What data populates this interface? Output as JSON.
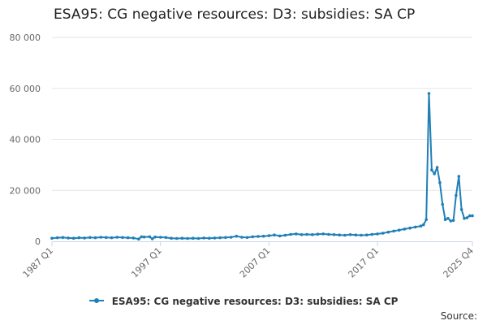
{
  "chart_data": {
    "type": "line",
    "title": "ESA95: CG negative resources: D3: subsidies: SA CP",
    "xlabel": "",
    "ylabel": "",
    "ylim": [
      0,
      80000
    ],
    "yticks": [
      {
        "value": 0,
        "label": "0"
      },
      {
        "value": 20000,
        "label": "20 000"
      },
      {
        "value": 40000,
        "label": "40 000"
      },
      {
        "value": 60000,
        "label": "60 000"
      },
      {
        "value": 80000,
        "label": "80 000"
      }
    ],
    "xlim": [
      1987.0,
      2025.75
    ],
    "xticks": [
      {
        "value": 1987.0,
        "label": "1987 Q1"
      },
      {
        "value": 1997.0,
        "label": "1997 Q1"
      },
      {
        "value": 2007.0,
        "label": "2007 Q1"
      },
      {
        "value": 2017.0,
        "label": "2017 Q1"
      },
      {
        "value": 2025.75,
        "label": "2025 Q4"
      }
    ],
    "grid": true,
    "legend_position": "bottom",
    "series": [
      {
        "name": "ESA95: CG negative resources: D3: subsidies: SA CP",
        "color": "#1f7fb7",
        "points": [
          [
            1987.0,
            1200
          ],
          [
            1987.5,
            1400
          ],
          [
            1988.0,
            1500
          ],
          [
            1988.5,
            1300
          ],
          [
            1989.0,
            1200
          ],
          [
            1989.5,
            1400
          ],
          [
            1990.0,
            1300
          ],
          [
            1990.5,
            1500
          ],
          [
            1991.0,
            1400
          ],
          [
            1991.5,
            1600
          ],
          [
            1992.0,
            1500
          ],
          [
            1992.5,
            1400
          ],
          [
            1993.0,
            1600
          ],
          [
            1993.5,
            1500
          ],
          [
            1994.0,
            1400
          ],
          [
            1994.5,
            1300
          ],
          [
            1995.0,
            900
          ],
          [
            1995.25,
            1800
          ],
          [
            1995.5,
            1700
          ],
          [
            1996.0,
            1800
          ],
          [
            1996.25,
            1000
          ],
          [
            1996.5,
            1700
          ],
          [
            1997.0,
            1600
          ],
          [
            1997.5,
            1500
          ],
          [
            1998.0,
            1200
          ],
          [
            1998.5,
            1100
          ],
          [
            1999.0,
            1200
          ],
          [
            1999.5,
            1100
          ],
          [
            2000.0,
            1200
          ],
          [
            2000.5,
            1100
          ],
          [
            2001.0,
            1300
          ],
          [
            2001.5,
            1200
          ],
          [
            2002.0,
            1300
          ],
          [
            2002.5,
            1400
          ],
          [
            2003.0,
            1500
          ],
          [
            2003.5,
            1600
          ],
          [
            2004.0,
            2000
          ],
          [
            2004.5,
            1600
          ],
          [
            2005.0,
            1500
          ],
          [
            2005.5,
            1800
          ],
          [
            2006.0,
            1900
          ],
          [
            2006.5,
            2000
          ],
          [
            2007.0,
            2200
          ],
          [
            2007.5,
            2500
          ],
          [
            2008.0,
            2100
          ],
          [
            2008.5,
            2400
          ],
          [
            2009.0,
            2700
          ],
          [
            2009.5,
            2900
          ],
          [
            2010.0,
            2600
          ],
          [
            2010.5,
            2700
          ],
          [
            2011.0,
            2600
          ],
          [
            2011.5,
            2800
          ],
          [
            2012.0,
            2900
          ],
          [
            2012.5,
            2700
          ],
          [
            2013.0,
            2600
          ],
          [
            2013.5,
            2500
          ],
          [
            2014.0,
            2400
          ],
          [
            2014.5,
            2600
          ],
          [
            2015.0,
            2500
          ],
          [
            2015.5,
            2400
          ],
          [
            2016.0,
            2500
          ],
          [
            2016.5,
            2700
          ],
          [
            2017.0,
            2900
          ],
          [
            2017.5,
            3200
          ],
          [
            2018.0,
            3600
          ],
          [
            2018.5,
            4000
          ],
          [
            2019.0,
            4400
          ],
          [
            2019.5,
            4800
          ],
          [
            2020.0,
            5200
          ],
          [
            2020.5,
            5600
          ],
          [
            2021.0,
            6000
          ],
          [
            2021.25,
            6500
          ],
          [
            2021.5,
            8500
          ],
          [
            2021.75,
            58000
          ],
          [
            2022.0,
            28000
          ],
          [
            2022.25,
            26500
          ],
          [
            2022.5,
            29000
          ],
          [
            2022.75,
            23000
          ],
          [
            2023.0,
            14500
          ],
          [
            2023.25,
            8500
          ],
          [
            2023.5,
            9000
          ],
          [
            2023.75,
            8000
          ],
          [
            2024.0,
            8200
          ],
          [
            2024.25,
            18000
          ],
          [
            2024.5,
            25500
          ],
          [
            2024.75,
            12500
          ],
          [
            2025.0,
            9000
          ],
          [
            2025.25,
            9200
          ],
          [
            2025.5,
            10000
          ],
          [
            2025.75,
            10000
          ]
        ]
      }
    ]
  },
  "legend": {
    "label": "ESA95: CG negative resources: D3: subsidies: SA CP"
  },
  "footer": {
    "source_label": "Source:"
  }
}
